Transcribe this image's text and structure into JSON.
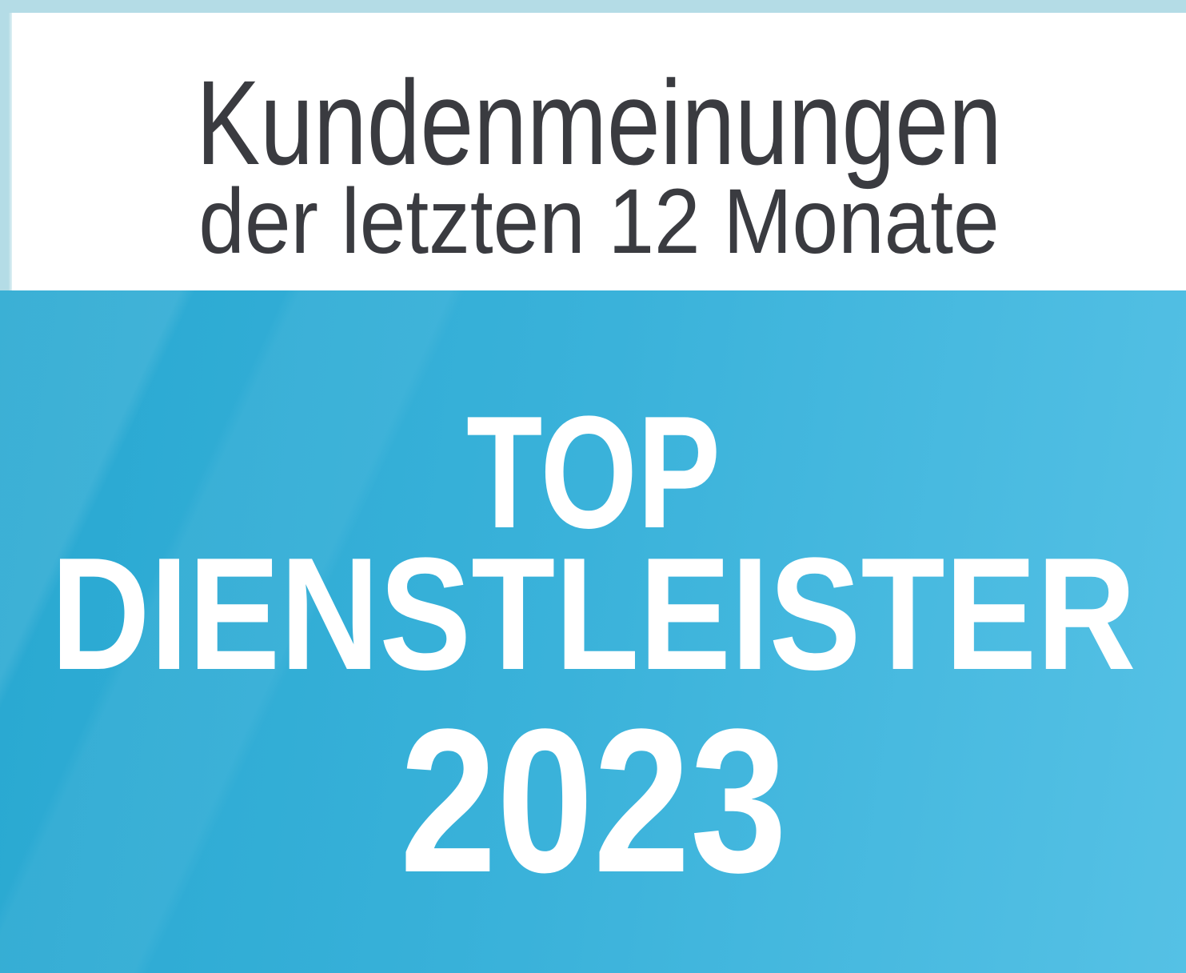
{
  "badge": {
    "header": {
      "title": "Kundenmeinungen",
      "subtitle": "der letzten 12 Monate"
    },
    "award": {
      "line1": "TOP",
      "line2": "DIENSTLEISTER",
      "year": "2023"
    }
  },
  "colors": {
    "frame_light_blue": "#b4dce6",
    "panel_white": "#ffffff",
    "headline_gray": "#3a3b40",
    "award_text_white": "#ffffff",
    "blue_gradient_start": "#28a8d1",
    "blue_gradient_mid": "#3ab2da",
    "blue_gradient_end": "#55c1e5"
  }
}
